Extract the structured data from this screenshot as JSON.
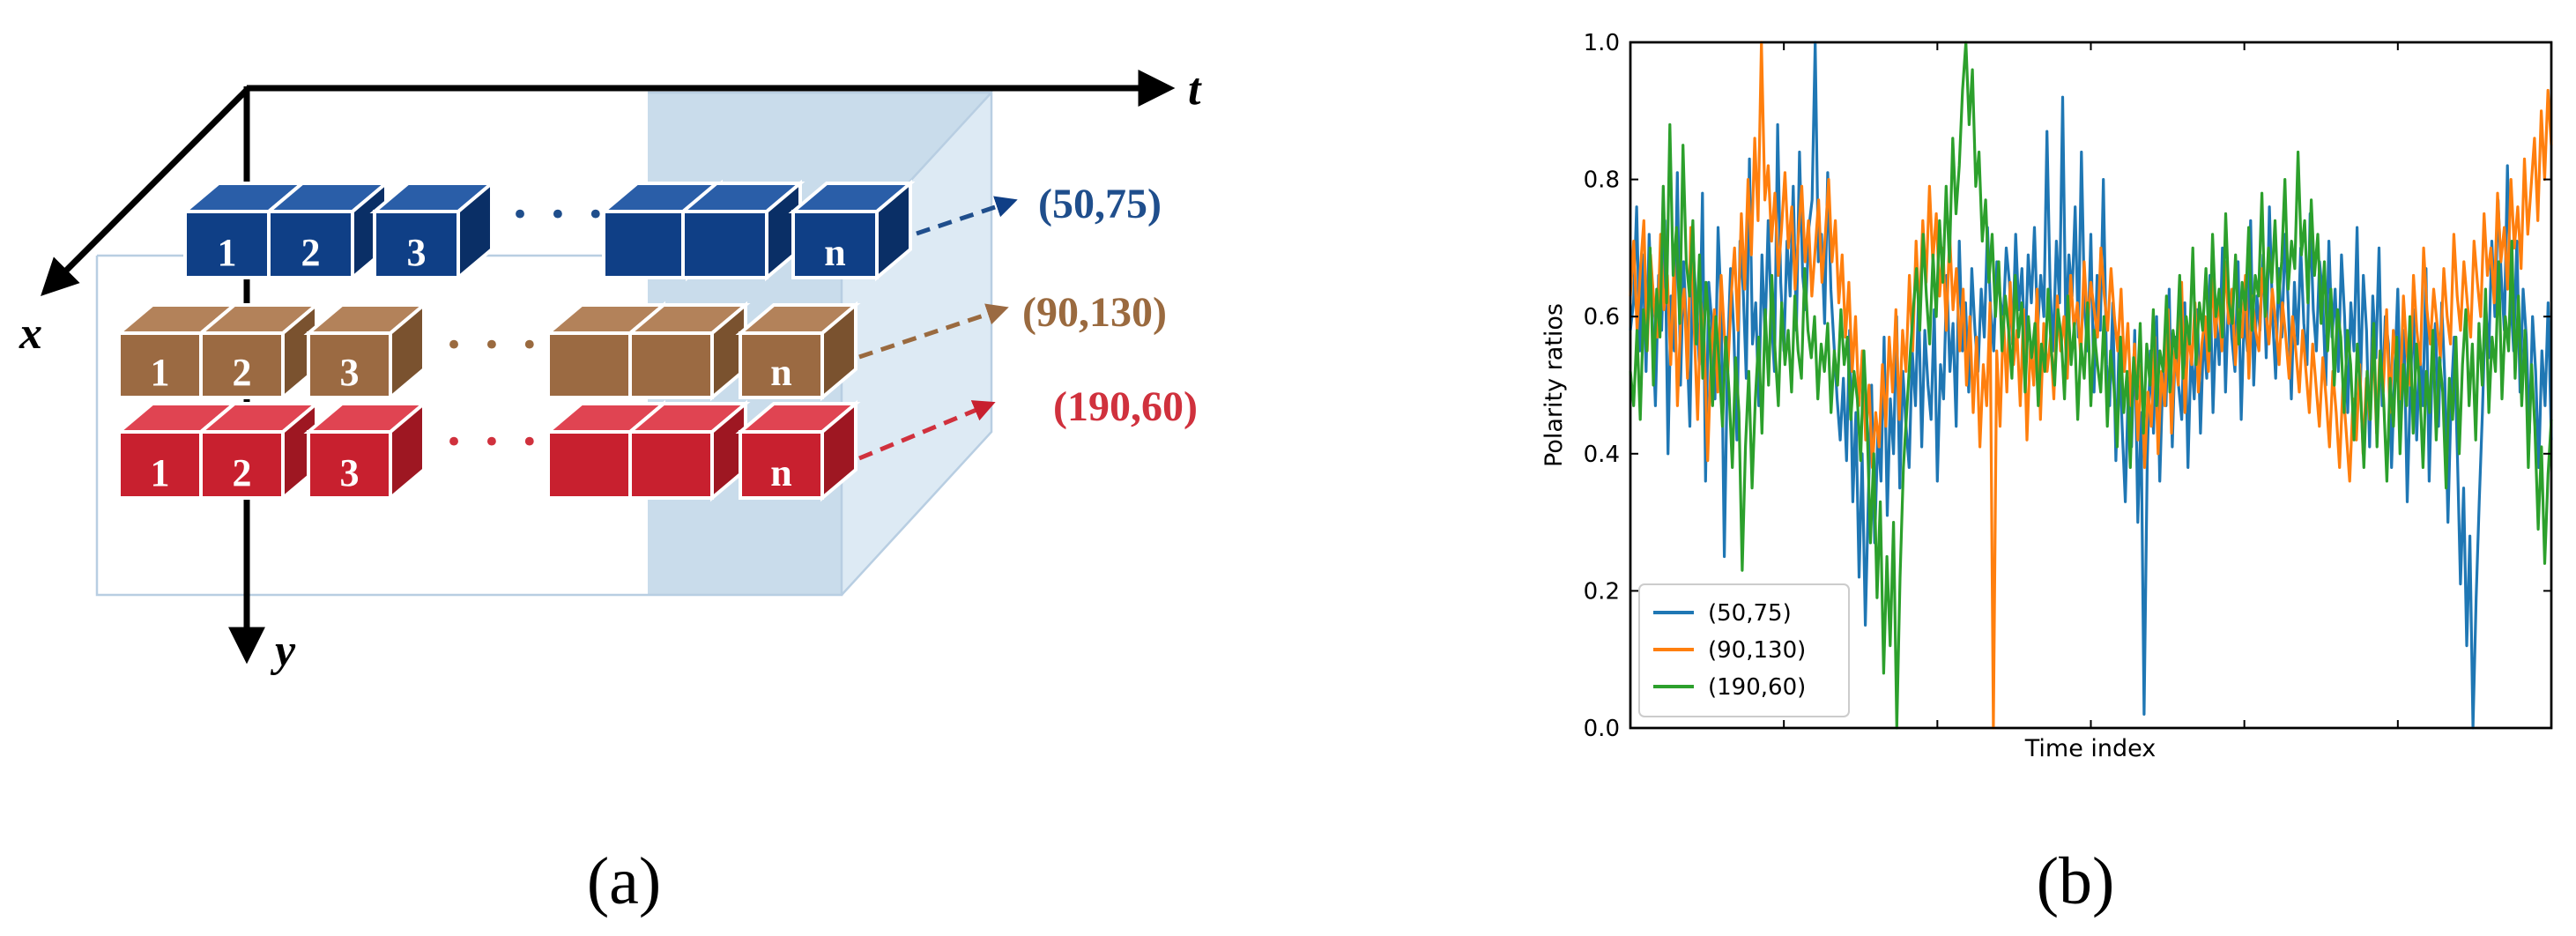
{
  "panel_a": {
    "label": "(a)",
    "axes": {
      "t": "t",
      "x": "x",
      "y": "y"
    },
    "ellipsis": "• • •",
    "rows": [
      {
        "name": "blue-row",
        "pixel": "(50,75)",
        "color": "#1f4e8c",
        "front": "#0f3f86",
        "top": "#2a5ea8",
        "side": "#0a2f66",
        "labels": [
          "1",
          "2",
          "3",
          "",
          "",
          "n"
        ]
      },
      {
        "name": "brown-row",
        "pixel": "(90,130)",
        "color": "#9a6a3f",
        "front": "#9b6a42",
        "top": "#b3825a",
        "side": "#7a522f",
        "labels": [
          "1",
          "2",
          "3",
          "",
          "",
          "n"
        ]
      },
      {
        "name": "red-row",
        "pixel": "(190,60)",
        "color": "#d0313d",
        "front": "#c8202f",
        "top": "#e04452",
        "side": "#9e1722",
        "labels": [
          "1",
          "2",
          "3",
          "",
          "",
          "n"
        ]
      }
    ]
  },
  "panel_b": {
    "label": "(b)"
  },
  "chart_data": {
    "type": "line",
    "title": "",
    "xlabel": "Time index",
    "ylabel": "Polarity ratios",
    "xlim": [
      0,
      300
    ],
    "ylim": [
      0.0,
      1.0
    ],
    "yticks": [
      "0.0",
      "0.2",
      "0.4",
      "0.6",
      "0.8",
      "1.0"
    ],
    "legend_position": "lower-left",
    "series": [
      {
        "name": "(50,75)",
        "color": "#1f77b4",
        "values": [
          0.58,
          0.62,
          0.76,
          0.55,
          0.69,
          0.52,
          0.72,
          0.6,
          0.47,
          0.66,
          0.58,
          0.74,
          0.4,
          0.63,
          0.55,
          0.81,
          0.5,
          0.68,
          0.57,
          0.44,
          0.7,
          0.62,
          0.53,
          0.78,
          0.36,
          0.65,
          0.59,
          0.48,
          0.73,
          0.61,
          0.25,
          0.54,
          0.67,
          0.58,
          0.42,
          0.71,
          0.64,
          0.51,
          0.83,
          0.56,
          0.62,
          0.47,
          0.69,
          0.57,
          0.74,
          0.6,
          0.52,
          0.88,
          0.65,
          0.55,
          0.71,
          0.63,
          0.79,
          0.58,
          0.84,
          0.66,
          0.61,
          0.73,
          0.77,
          1.0,
          0.68,
          0.72,
          0.59,
          0.81,
          0.64,
          0.56,
          0.48,
          0.42,
          0.51,
          0.39,
          0.58,
          0.33,
          0.46,
          0.22,
          0.4,
          0.15,
          0.34,
          0.5,
          0.27,
          0.43,
          0.36,
          0.57,
          0.31,
          0.48,
          0.4,
          0.6,
          0.35,
          0.52,
          0.44,
          0.38,
          0.55,
          0.47,
          0.63,
          0.41,
          0.58,
          0.5,
          0.45,
          0.61,
          0.36,
          0.53,
          0.48,
          0.66,
          0.52,
          0.59,
          0.44,
          0.71,
          0.55,
          0.62,
          0.49,
          0.67,
          0.58,
          0.52,
          0.64,
          0.57,
          0.73,
          0.61,
          0.55,
          0.68,
          0.63,
          0.59,
          0.7,
          0.65,
          0.56,
          0.72,
          0.61,
          0.67,
          0.54,
          0.69,
          0.62,
          0.73,
          0.58,
          0.66,
          0.6,
          0.87,
          0.64,
          0.55,
          0.71,
          0.62,
          0.92,
          0.58,
          0.69,
          0.63,
          0.76,
          0.57,
          0.84,
          0.61,
          0.55,
          0.72,
          0.49,
          0.66,
          0.58,
          0.8,
          0.53,
          0.47,
          0.62,
          0.39,
          0.56,
          0.44,
          0.33,
          0.51,
          0.41,
          0.58,
          0.3,
          0.46,
          0.02,
          0.39,
          0.55,
          0.43,
          0.6,
          0.36,
          0.52,
          0.47,
          0.64,
          0.41,
          0.57,
          0.5,
          0.45,
          0.62,
          0.38,
          0.55,
          0.48,
          0.61,
          0.43,
          0.58,
          0.51,
          0.66,
          0.46,
          0.6,
          0.53,
          0.7,
          0.49,
          0.64,
          0.57,
          0.52,
          0.68,
          0.45,
          0.61,
          0.55,
          0.74,
          0.5,
          0.63,
          0.58,
          0.69,
          0.54,
          0.76,
          0.6,
          0.51,
          0.67,
          0.57,
          0.72,
          0.62,
          0.48,
          0.65,
          0.56,
          0.7,
          0.59,
          0.53,
          0.75,
          0.61,
          0.55,
          0.68,
          0.63,
          0.5,
          0.71,
          0.57,
          0.64,
          0.52,
          0.69,
          0.6,
          0.46,
          0.62,
          0.55,
          0.73,
          0.49,
          0.66,
          0.58,
          0.41,
          0.63,
          0.54,
          0.7,
          0.47,
          0.6,
          0.56,
          0.38,
          0.52,
          0.64,
          0.45,
          0.58,
          0.33,
          0.5,
          0.61,
          0.42,
          0.55,
          0.47,
          0.67,
          0.36,
          0.53,
          0.59,
          0.44,
          0.62,
          0.51,
          0.3,
          0.48,
          0.57,
          0.4,
          0.21,
          0.35,
          0.12,
          0.28,
          0.0,
          0.19,
          0.33,
          0.46,
          0.62,
          0.54,
          0.71,
          0.6,
          0.77,
          0.66,
          0.58,
          0.82,
          0.63,
          0.55,
          0.71,
          0.49,
          0.64,
          0.57,
          0.43,
          0.6,
          0.52,
          0.38,
          0.55,
          0.47,
          0.62,
          0.42
        ]
      },
      {
        "name": "(90,130)",
        "color": "#ff7f0e",
        "values": [
          0.63,
          0.71,
          0.58,
          0.67,
          0.74,
          0.55,
          0.69,
          0.62,
          0.57,
          0.72,
          0.61,
          0.66,
          0.53,
          0.68,
          0.47,
          0.6,
          0.64,
          0.51,
          0.73,
          0.58,
          0.45,
          0.62,
          0.56,
          0.39,
          0.54,
          0.61,
          0.49,
          0.66,
          0.57,
          0.52,
          0.63,
          0.7,
          0.58,
          0.75,
          0.64,
          0.8,
          0.69,
          0.86,
          0.74,
          1.0,
          0.77,
          0.82,
          0.71,
          0.78,
          0.66,
          0.73,
          0.81,
          0.7,
          0.76,
          0.64,
          0.72,
          0.79,
          0.68,
          0.74,
          0.63,
          0.7,
          0.77,
          0.65,
          0.72,
          0.8,
          0.68,
          0.74,
          0.62,
          0.69,
          0.57,
          0.65,
          0.52,
          0.6,
          0.47,
          0.55,
          0.42,
          0.5,
          0.38,
          0.46,
          0.41,
          0.53,
          0.44,
          0.57,
          0.49,
          0.61,
          0.45,
          0.58,
          0.52,
          0.66,
          0.55,
          0.71,
          0.6,
          0.74,
          0.65,
          0.79,
          0.68,
          0.75,
          0.63,
          0.7,
          0.58,
          0.72,
          0.61,
          0.67,
          0.55,
          0.64,
          0.5,
          0.6,
          0.46,
          0.57,
          0.41,
          0.53,
          0.47,
          0.62,
          0.0,
          0.55,
          0.44,
          0.6,
          0.49,
          0.65,
          0.53,
          0.58,
          0.47,
          0.61,
          0.42,
          0.56,
          0.5,
          0.64,
          0.45,
          0.59,
          0.52,
          0.57,
          0.48,
          0.63,
          0.55,
          0.6,
          0.51,
          0.66,
          0.58,
          0.62,
          0.54,
          0.68,
          0.59,
          0.65,
          0.61,
          0.57,
          0.7,
          0.63,
          0.58,
          0.67,
          0.6,
          0.55,
          0.64,
          0.52,
          0.59,
          0.47,
          0.56,
          0.42,
          0.53,
          0.38,
          0.49,
          0.44,
          0.57,
          0.4,
          0.52,
          0.47,
          0.61,
          0.43,
          0.55,
          0.5,
          0.65,
          0.46,
          0.58,
          0.53,
          0.62,
          0.49,
          0.56,
          0.6,
          0.52,
          0.66,
          0.57,
          0.63,
          0.55,
          0.68,
          0.59,
          0.64,
          0.53,
          0.61,
          0.57,
          0.66,
          0.51,
          0.63,
          0.58,
          0.55,
          0.67,
          0.61,
          0.56,
          0.64,
          0.59,
          0.53,
          0.62,
          0.57,
          0.51,
          0.6,
          0.55,
          0.49,
          0.58,
          0.52,
          0.46,
          0.56,
          0.5,
          0.44,
          0.54,
          0.48,
          0.41,
          0.52,
          0.46,
          0.38,
          0.5,
          0.43,
          0.36,
          0.48,
          0.42,
          0.53,
          0.4,
          0.51,
          0.45,
          0.57,
          0.43,
          0.55,
          0.49,
          0.61,
          0.46,
          0.58,
          0.52,
          0.48,
          0.63,
          0.55,
          0.5,
          0.66,
          0.58,
          0.53,
          0.7,
          0.61,
          0.56,
          0.64,
          0.59,
          0.54,
          0.67,
          0.6,
          0.56,
          0.72,
          0.63,
          0.58,
          0.68,
          0.62,
          0.57,
          0.71,
          0.65,
          0.6,
          0.75,
          0.66,
          0.7,
          0.62,
          0.78,
          0.68,
          0.73,
          0.64,
          0.8,
          0.7,
          0.76,
          0.67,
          0.83,
          0.72,
          0.79,
          0.86,
          0.74,
          0.9,
          0.8,
          0.93,
          0.85
        ]
      },
      {
        "name": "(190,60)",
        "color": "#2ca02c",
        "values": [
          0.52,
          0.47,
          0.58,
          0.45,
          0.61,
          0.55,
          0.7,
          0.5,
          0.64,
          0.57,
          0.79,
          0.62,
          0.88,
          0.66,
          0.73,
          0.59,
          0.85,
          0.68,
          0.63,
          0.74,
          0.56,
          0.69,
          0.51,
          0.65,
          0.58,
          0.47,
          0.6,
          0.53,
          0.44,
          0.57,
          0.49,
          0.38,
          0.54,
          0.46,
          0.23,
          0.41,
          0.52,
          0.35,
          0.48,
          0.57,
          0.43,
          0.61,
          0.5,
          0.66,
          0.55,
          0.47,
          0.62,
          0.53,
          0.58,
          0.49,
          0.63,
          0.55,
          0.51,
          0.67,
          0.58,
          0.54,
          0.6,
          0.48,
          0.56,
          0.52,
          0.59,
          0.46,
          0.55,
          0.5,
          0.61,
          0.53,
          0.57,
          0.45,
          0.52,
          0.48,
          0.39,
          0.55,
          0.44,
          0.27,
          0.4,
          0.19,
          0.33,
          0.08,
          0.25,
          0.12,
          0.3,
          0.0,
          0.22,
          0.38,
          0.46,
          0.54,
          0.61,
          0.67,
          0.58,
          0.72,
          0.63,
          0.56,
          0.69,
          0.6,
          0.74,
          0.65,
          0.79,
          0.68,
          0.86,
          0.75,
          0.82,
          0.93,
          1.0,
          0.88,
          0.96,
          0.79,
          0.84,
          0.71,
          0.77,
          0.65,
          0.72,
          0.6,
          0.68,
          0.55,
          0.63,
          0.58,
          0.51,
          0.66,
          0.57,
          0.62,
          0.49,
          0.6,
          0.54,
          0.59,
          0.47,
          0.56,
          0.52,
          0.64,
          0.55,
          0.5,
          0.61,
          0.57,
          0.48,
          0.63,
          0.53,
          0.59,
          0.45,
          0.56,
          0.51,
          0.62,
          0.47,
          0.58,
          0.53,
          0.49,
          0.6,
          0.44,
          0.55,
          0.5,
          0.41,
          0.57,
          0.46,
          0.52,
          0.38,
          0.54,
          0.48,
          0.59,
          0.43,
          0.56,
          0.5,
          0.61,
          0.47,
          0.55,
          0.52,
          0.63,
          0.49,
          0.58,
          0.54,
          0.66,
          0.51,
          0.6,
          0.56,
          0.7,
          0.53,
          0.62,
          0.58,
          0.67,
          0.55,
          0.72,
          0.6,
          0.64,
          0.57,
          0.75,
          0.62,
          0.59,
          0.69,
          0.56,
          0.65,
          0.61,
          0.73,
          0.58,
          0.66,
          0.63,
          0.78,
          0.6,
          0.7,
          0.65,
          0.74,
          0.62,
          0.68,
          0.8,
          0.64,
          0.71,
          0.67,
          0.84,
          0.69,
          0.74,
          0.62,
          0.77,
          0.66,
          0.72,
          0.59,
          0.68,
          0.55,
          0.64,
          0.5,
          0.61,
          0.57,
          0.46,
          0.58,
          0.53,
          0.42,
          0.56,
          0.49,
          0.38,
          0.52,
          0.45,
          0.59,
          0.41,
          0.55,
          0.48,
          0.36,
          0.51,
          0.44,
          0.57,
          0.4,
          0.53,
          0.47,
          0.6,
          0.43,
          0.56,
          0.5,
          0.38,
          0.52,
          0.46,
          0.58,
          0.42,
          0.54,
          0.49,
          0.35,
          0.51,
          0.45,
          0.57,
          0.4,
          0.53,
          0.61,
          0.47,
          0.56,
          0.42,
          0.59,
          0.5,
          0.64,
          0.46,
          0.57,
          0.52,
          0.68,
          0.48,
          0.6,
          0.55,
          0.71,
          0.51,
          0.63,
          0.47,
          0.58,
          0.38,
          0.53,
          0.44,
          0.29,
          0.41,
          0.24,
          0.37,
          0.45
        ]
      }
    ]
  }
}
